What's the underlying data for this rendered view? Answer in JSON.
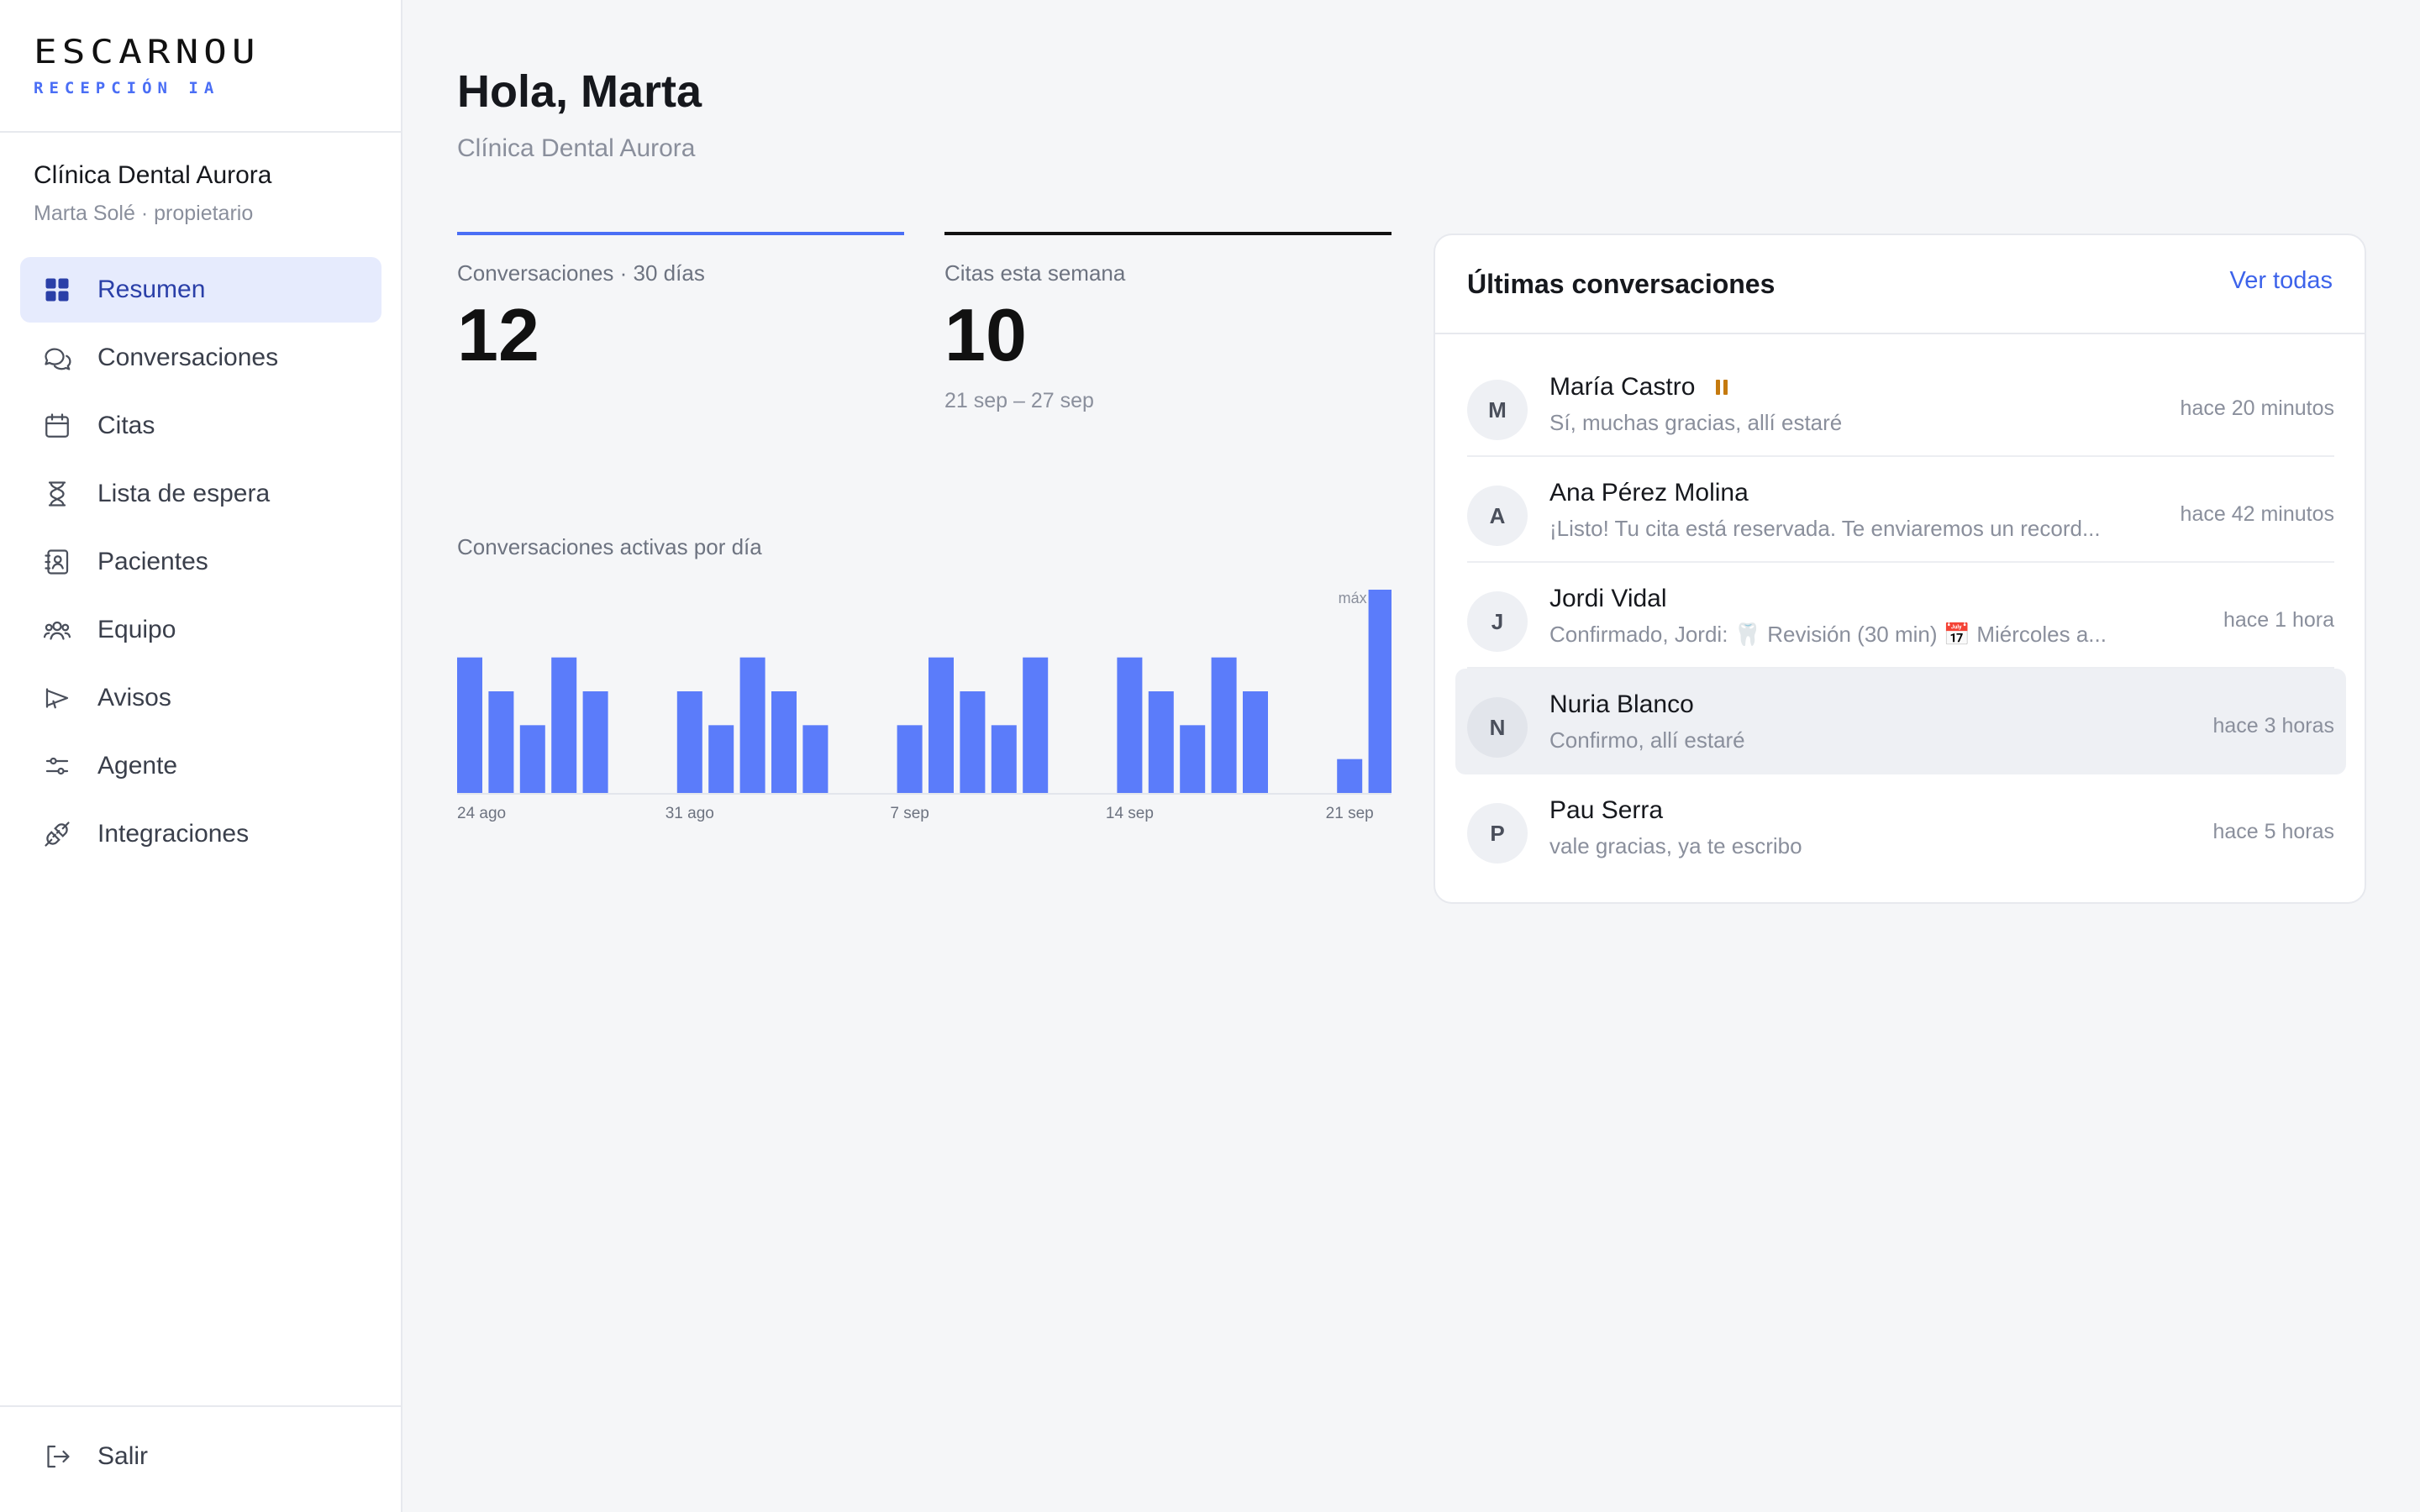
{
  "brand": {
    "logo": "ESCARNOU",
    "sub": "RECEPCIÓN IA"
  },
  "clinic": {
    "name": "Clínica Dental Aurora",
    "user": "Marta Solé · propietario"
  },
  "nav": [
    {
      "label": "Resumen",
      "icon": "grid-icon"
    },
    {
      "label": "Conversaciones",
      "icon": "chat-bubbles-icon"
    },
    {
      "label": "Citas",
      "icon": "calendar-icon"
    },
    {
      "label": "Lista de espera",
      "icon": "hourglass-icon"
    },
    {
      "label": "Pacientes",
      "icon": "contact-book-icon"
    },
    {
      "label": "Equipo",
      "icon": "team-icon"
    },
    {
      "label": "Avisos",
      "icon": "megaphone-icon"
    },
    {
      "label": "Agente",
      "icon": "sliders-icon"
    },
    {
      "label": "Integraciones",
      "icon": "plug-icon"
    }
  ],
  "logout": {
    "label": "Salir",
    "icon": "logout-icon"
  },
  "header": {
    "greeting": "Hola, Marta",
    "subtitle": "Clínica Dental Aurora"
  },
  "stats": [
    {
      "label": "Conversaciones · 30 días",
      "value": "12",
      "range": "",
      "accent": "#4a6ef5"
    },
    {
      "label": "Citas esta semana",
      "value": "10",
      "range": "21 sep – 27 sep",
      "accent": "#111111"
    }
  ],
  "chart_title": "Conversaciones activas por día",
  "chart_data": {
    "type": "bar",
    "title": "Conversaciones activas por día",
    "color": "#5b7cfa",
    "values": [
      4,
      3,
      2,
      4,
      3,
      0,
      0,
      3,
      2,
      4,
      3,
      2,
      0,
      0,
      2,
      4,
      3,
      2,
      4,
      0,
      0,
      4,
      3,
      2,
      4,
      3,
      0,
      0,
      1,
      6
    ],
    "tick_labels": [
      {
        "index": 0,
        "label": "24 ago"
      },
      {
        "index": 7,
        "label": "31 ago"
      },
      {
        "index": 14,
        "label": "7 sep"
      },
      {
        "index": 21,
        "label": "14 sep"
      },
      {
        "index": 28,
        "label": "21 sep"
      }
    ],
    "max_label": "máx",
    "ylim": [
      0,
      6
    ]
  },
  "panel": {
    "title": "Últimas conversaciones",
    "link": "Ver todas",
    "conversations": [
      {
        "initial": "M",
        "name": "María Castro",
        "paused": true,
        "message": "Sí, muchas gracias, allí estaré",
        "time": "hace 20 minutos"
      },
      {
        "initial": "A",
        "name": "Ana Pérez Molina",
        "paused": false,
        "message": "¡Listo! Tu cita está reservada. Te enviaremos un record...",
        "time": "hace 42 minutos"
      },
      {
        "initial": "J",
        "name": "Jordi Vidal",
        "paused": false,
        "message": "Confirmado, Jordi: 🦷 Revisión (30 min) 📅 Miércoles a...",
        "time": "hace 1 hora"
      },
      {
        "initial": "N",
        "name": "Nuria Blanco",
        "paused": false,
        "message": "Confirmo, allí estaré",
        "time": "hace 3 horas"
      },
      {
        "initial": "P",
        "name": "Pau Serra",
        "paused": false,
        "message": "vale gracias, ya te escribo",
        "time": "hace 5 horas"
      }
    ]
  }
}
